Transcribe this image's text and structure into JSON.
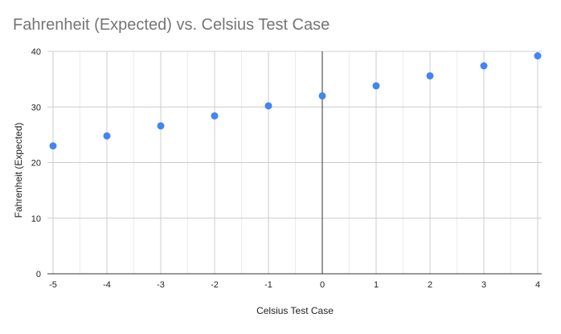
{
  "chart_data": {
    "type": "scatter",
    "title": "Fahrenheit (Expected) vs. Celsius Test Case",
    "xlabel": "Celsius Test Case",
    "ylabel": "Fahrenheit (Expected)",
    "xlim": [
      -5,
      4
    ],
    "ylim": [
      0,
      40
    ],
    "x_ticks": [
      -5,
      -4,
      -3,
      -2,
      -1,
      0,
      1,
      2,
      3,
      4
    ],
    "y_ticks": [
      0,
      10,
      20,
      30,
      40
    ],
    "grid": true,
    "series": [
      {
        "x": [
          -5,
          -4,
          -3,
          -2,
          -1,
          0,
          1,
          2,
          3,
          4
        ],
        "y": [
          23,
          24.8,
          26.6,
          28.4,
          30.2,
          32,
          33.8,
          35.6,
          37.4,
          39.2
        ],
        "color": "#4285f4"
      }
    ]
  }
}
